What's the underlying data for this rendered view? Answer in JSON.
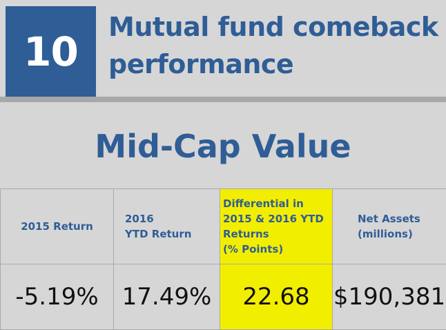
{
  "rank": "10",
  "title": "Mutual fund comeback performance",
  "category": "Mid-Cap Value",
  "colors": {
    "brand_blue": "#2f5d96",
    "highlight_yellow": "#f2ee00",
    "background": "#d6d6d6"
  },
  "table": {
    "headers": [
      "2015 Return",
      "2016\nYTD Return",
      "Differential in\n2015 & 2016 YTD\nReturns\n(% Points)",
      "Net Assets\n(millions)"
    ],
    "values": [
      "-5.19%",
      "17.49%",
      "22.68",
      "$190,381"
    ],
    "highlighted_column": 3
  }
}
